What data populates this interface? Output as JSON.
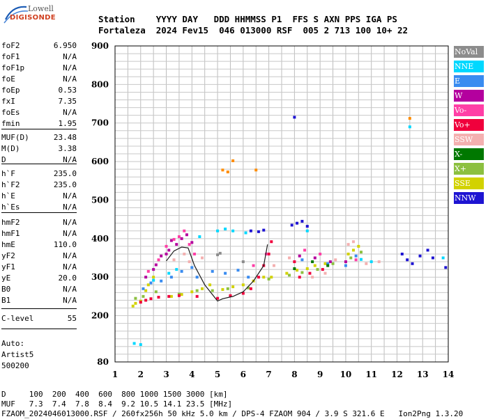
{
  "logo": {
    "top": "Lowell",
    "main": "DIGISONDE"
  },
  "header": {
    "line1": "Station    YYYY DAY   DDD HHMMSS P1  FFS S AXN PPS IGA PS",
    "line2": "Fortaleza  2024 Fev15  046 013000 RSF  005 2 713 100 10+ 22"
  },
  "params": [
    {
      "label": "foF2",
      "value": "6.950"
    },
    {
      "label": "foF1",
      "value": "N/A"
    },
    {
      "label": "foF1p",
      "value": "N/A"
    },
    {
      "label": "foE",
      "value": "N/A"
    },
    {
      "label": "foEp",
      "value": "0.53"
    },
    {
      "label": "fxI",
      "value": "7.35"
    },
    {
      "label": "foEs",
      "value": "N/A"
    },
    {
      "label": "fmin",
      "value": "1.95"
    },
    {
      "label": "MUF(D)",
      "value": "23.48"
    },
    {
      "label": "M(D)",
      "value": "3.38"
    },
    {
      "label": "D",
      "value": "N/A"
    },
    {
      "label": "h`F",
      "value": "235.0"
    },
    {
      "label": "h`F2",
      "value": "235.0"
    },
    {
      "label": "h`E",
      "value": "N/A"
    },
    {
      "label": "h`Es",
      "value": "N/A"
    },
    {
      "label": "hmF2",
      "value": "N/A"
    },
    {
      "label": "hmF1",
      "value": "N/A"
    },
    {
      "label": "hmE",
      "value": "110.0"
    },
    {
      "label": "yF2",
      "value": "N/A"
    },
    {
      "label": "yF1",
      "value": "N/A"
    },
    {
      "label": "yE",
      "value": "20.0"
    },
    {
      "label": "B0",
      "value": "N/A"
    },
    {
      "label": "B1",
      "value": "N/A"
    },
    {
      "label": "C-level",
      "value": "55"
    }
  ],
  "auto": {
    "line1": "Auto:",
    "line2": "Artist5",
    "line3": "500200"
  },
  "legend": [
    {
      "label": "NoVal",
      "color": "#8c8c8c"
    },
    {
      "label": "NNE",
      "color": "#00d8ff"
    },
    {
      "label": "E",
      "color": "#3a8cf0"
    },
    {
      "label": "W",
      "color": "#b4009e"
    },
    {
      "label": "Vo-",
      "color": "#ff3fa6"
    },
    {
      "label": "Vo+",
      "color": "#f0003c"
    },
    {
      "label": "SSW",
      "color": "#f4b0b0"
    },
    {
      "label": "X-",
      "color": "#007800"
    },
    {
      "label": "X+",
      "color": "#8cc040"
    },
    {
      "label": "SSE",
      "color": "#d2d200"
    },
    {
      "label": "NNW",
      "color": "#1e14d2"
    }
  ],
  "footer": {
    "line1": "D     100  200  400  600  800 1000 1500 3000 [km]",
    "line2": "MUF   7.3  7.4  7.8  8.4  9.2 10.5 14.1 23.5 [MHz]",
    "line3": "FZAOM_2024046013000.RSF / 260fx256h 50 kHz 5.0 km / DPS-4 FZAOM 904 / 3.9 S 321.6 E   Ion2Png 1.3.20"
  },
  "chart_data": {
    "type": "scatter",
    "xlim": [
      1,
      14
    ],
    "ylim": [
      80,
      900
    ],
    "xticks": [
      "1",
      "2",
      "3",
      "4",
      "5",
      "6",
      "7",
      "8",
      "9",
      "10",
      "11",
      "12",
      "13",
      "14"
    ],
    "yticks": [
      "80",
      "200",
      "300",
      "400",
      "500",
      "600",
      "700",
      "800",
      "900"
    ],
    "grid": true,
    "trace": {
      "x": [
        3.0,
        3.3,
        3.6,
        3.85,
        4.1,
        4.5,
        5.0,
        5.2,
        5.6,
        6.0,
        6.4,
        6.8,
        6.95
      ],
      "y": [
        342,
        368,
        378,
        376,
        330,
        280,
        238,
        244,
        250,
        262,
        290,
        330,
        385
      ]
    },
    "series": [
      {
        "color": "#d2d200",
        "points": [
          [
            1.7,
            225
          ],
          [
            1.8,
            232
          ],
          [
            2.0,
            238
          ],
          [
            2.2,
            265
          ],
          [
            2.3,
            280
          ],
          [
            2.5,
            300
          ],
          [
            3.2,
            250
          ],
          [
            3.6,
            255
          ],
          [
            4.0,
            262
          ],
          [
            4.4,
            270
          ],
          [
            4.7,
            280
          ],
          [
            5.2,
            268
          ],
          [
            5.6,
            275
          ],
          [
            6.0,
            280
          ],
          [
            6.4,
            290
          ],
          [
            6.8,
            300
          ],
          [
            7.1,
            300
          ],
          [
            7.7,
            310
          ],
          [
            8.1,
            318
          ],
          [
            8.5,
            322
          ],
          [
            8.8,
            330
          ],
          [
            9.2,
            335
          ],
          [
            10.1,
            360
          ],
          [
            10.3,
            370
          ],
          [
            10.5,
            380
          ]
        ]
      },
      {
        "color": "#8cc040",
        "points": [
          [
            1.8,
            245
          ],
          [
            2.1,
            250
          ],
          [
            2.6,
            262
          ],
          [
            3.5,
            256
          ],
          [
            4.2,
            265
          ],
          [
            4.8,
            265
          ],
          [
            5.4,
            270
          ],
          [
            6.2,
            272
          ],
          [
            7.0,
            295
          ],
          [
            7.8,
            305
          ],
          [
            8.3,
            312
          ],
          [
            8.9,
            320
          ],
          [
            9.5,
            335
          ],
          [
            10.2,
            350
          ],
          [
            10.6,
            365
          ]
        ]
      },
      {
        "color": "#f0003c",
        "points": [
          [
            2.0,
            235
          ],
          [
            2.2,
            240
          ],
          [
            2.4,
            244
          ],
          [
            2.7,
            248
          ],
          [
            3.1,
            250
          ],
          [
            3.5,
            252
          ],
          [
            4.2,
            250
          ],
          [
            5.0,
            245
          ],
          [
            5.5,
            252
          ],
          [
            6.0,
            258
          ],
          [
            6.3,
            270
          ],
          [
            6.6,
            300
          ],
          [
            6.8,
            330
          ],
          [
            7.0,
            360
          ],
          [
            7.1,
            392
          ],
          [
            8.0,
            340
          ],
          [
            8.2,
            300
          ],
          [
            8.6,
            310
          ],
          [
            9.1,
            320
          ]
        ]
      },
      {
        "color": "#b4009e",
        "points": [
          [
            2.2,
            300
          ],
          [
            2.5,
            320
          ],
          [
            2.6,
            332
          ],
          [
            2.8,
            355
          ],
          [
            3.0,
            360
          ],
          [
            3.1,
            370
          ],
          [
            3.2,
            395
          ],
          [
            3.4,
            385
          ],
          [
            3.6,
            400
          ],
          [
            3.8,
            410
          ],
          [
            4.0,
            390
          ],
          [
            8.2,
            355
          ],
          [
            8.8,
            350
          ],
          [
            9.4,
            340
          ],
          [
            10.0,
            340
          ]
        ]
      },
      {
        "color": "#ff3fa6",
        "points": [
          [
            2.3,
            315
          ],
          [
            2.7,
            345
          ],
          [
            3.0,
            380
          ],
          [
            3.3,
            398
          ],
          [
            3.5,
            405
          ],
          [
            3.7,
            420
          ],
          [
            3.9,
            385
          ],
          [
            4.1,
            360
          ],
          [
            6.4,
            330
          ],
          [
            6.9,
            360
          ],
          [
            8.4,
            370
          ],
          [
            9.0,
            360
          ],
          [
            10.4,
            345
          ]
        ]
      },
      {
        "color": "#3a8cf0",
        "points": [
          [
            2.1,
            270
          ],
          [
            2.4,
            285
          ],
          [
            2.8,
            290
          ],
          [
            3.2,
            300
          ],
          [
            3.6,
            315
          ],
          [
            4.0,
            325
          ],
          [
            4.2,
            300
          ],
          [
            4.8,
            315
          ],
          [
            5.3,
            310
          ],
          [
            5.8,
            318
          ],
          [
            6.2,
            300
          ],
          [
            8.3,
            345
          ],
          [
            9.3,
            335
          ],
          [
            10.0,
            330
          ],
          [
            10.4,
            355
          ]
        ]
      },
      {
        "color": "#00d8ff",
        "points": [
          [
            1.75,
            128
          ],
          [
            2.0,
            125
          ],
          [
            2.5,
            292
          ],
          [
            3.1,
            310
          ],
          [
            3.4,
            320
          ],
          [
            4.3,
            405
          ],
          [
            5.0,
            420
          ],
          [
            5.3,
            425
          ],
          [
            5.6,
            420
          ],
          [
            6.1,
            415
          ],
          [
            8.5,
            420
          ],
          [
            10.6,
            346
          ],
          [
            11.0,
            340
          ],
          [
            12.5,
            690
          ],
          [
            13.8,
            350
          ]
        ]
      },
      {
        "color": "#1e14d2",
        "points": [
          [
            6.3,
            420
          ],
          [
            6.6,
            418
          ],
          [
            6.8,
            422
          ],
          [
            7.9,
            435
          ],
          [
            8.1,
            440
          ],
          [
            8.3,
            445
          ],
          [
            8.5,
            432
          ],
          [
            12.2,
            360
          ],
          [
            12.4,
            345
          ],
          [
            12.6,
            335
          ],
          [
            12.9,
            355
          ],
          [
            13.2,
            370
          ],
          [
            13.4,
            350
          ],
          [
            13.9,
            325
          ],
          [
            8.0,
            715
          ]
        ]
      },
      {
        "color": "#f4b0b0",
        "points": [
          [
            3.3,
            345
          ],
          [
            3.7,
            360
          ],
          [
            3.9,
            340
          ],
          [
            4.4,
            350
          ],
          [
            7.2,
            330
          ],
          [
            7.8,
            350
          ],
          [
            8.7,
            300
          ],
          [
            9.2,
            310
          ],
          [
            9.6,
            345
          ],
          [
            10.1,
            385
          ],
          [
            10.3,
            392
          ],
          [
            10.8,
            335
          ],
          [
            11.3,
            340
          ]
        ]
      },
      {
        "color": "#007800",
        "points": [
          [
            8.0,
            322
          ],
          [
            8.7,
            340
          ],
          [
            9.3,
            330
          ]
        ]
      },
      {
        "color": "#8c8c8c",
        "points": [
          [
            5.0,
            358
          ],
          [
            5.1,
            362
          ],
          [
            6.0,
            340
          ]
        ]
      },
      {
        "color": "#ff8c00",
        "points": [
          [
            5.2,
            578
          ],
          [
            5.4,
            573
          ],
          [
            5.6,
            602
          ],
          [
            6.5,
            578
          ],
          [
            12.5,
            712
          ]
        ]
      }
    ]
  }
}
